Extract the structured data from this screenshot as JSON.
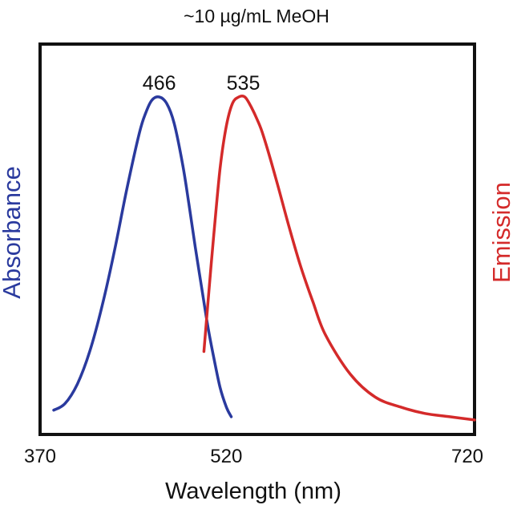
{
  "chart_data": {
    "type": "line",
    "title": "~10 µg/mL MeOH",
    "xlabel": "Wavelength (nm)",
    "ylabel_left": "Absorbance",
    "ylabel_right": "Emission",
    "xlim": [
      370,
      720
    ],
    "ylim": [
      0,
      1
    ],
    "x_ticks": [
      "370",
      "520",
      "720"
    ],
    "y_ticks": [],
    "grid": false,
    "legend": "none",
    "series": [
      {
        "name": "Absorbance",
        "color": "#2a3a9e",
        "x": [
          381,
          390,
          400,
          410,
          420,
          430,
          440,
          450,
          455,
          460,
          466,
          472,
          478,
          485,
          490,
          495,
          500,
          505,
          510,
          515,
          520,
          524
        ],
        "y": [
          0.04,
          0.06,
          0.12,
          0.22,
          0.36,
          0.53,
          0.72,
          0.89,
          0.95,
          0.99,
          1.0,
          0.98,
          0.92,
          0.79,
          0.67,
          0.54,
          0.42,
          0.3,
          0.2,
          0.11,
          0.05,
          0.02
        ]
      },
      {
        "name": "Emission",
        "color": "#d42a2a",
        "x": [
          502,
          505,
          510,
          515,
          520,
          525,
          530,
          535,
          540,
          545,
          550,
          560,
          570,
          580,
          590,
          600,
          620,
          640,
          660,
          680,
          700,
          720
        ],
        "y": [
          0.22,
          0.36,
          0.58,
          0.78,
          0.91,
          0.98,
          1.0,
          1.0,
          0.97,
          0.93,
          0.88,
          0.75,
          0.61,
          0.48,
          0.37,
          0.27,
          0.15,
          0.08,
          0.05,
          0.03,
          0.02,
          0.01
        ]
      }
    ],
    "annotations": [
      {
        "text": "466",
        "x": 466,
        "y": 1.0
      },
      {
        "text": "535",
        "x": 535,
        "y": 1.0
      }
    ]
  }
}
